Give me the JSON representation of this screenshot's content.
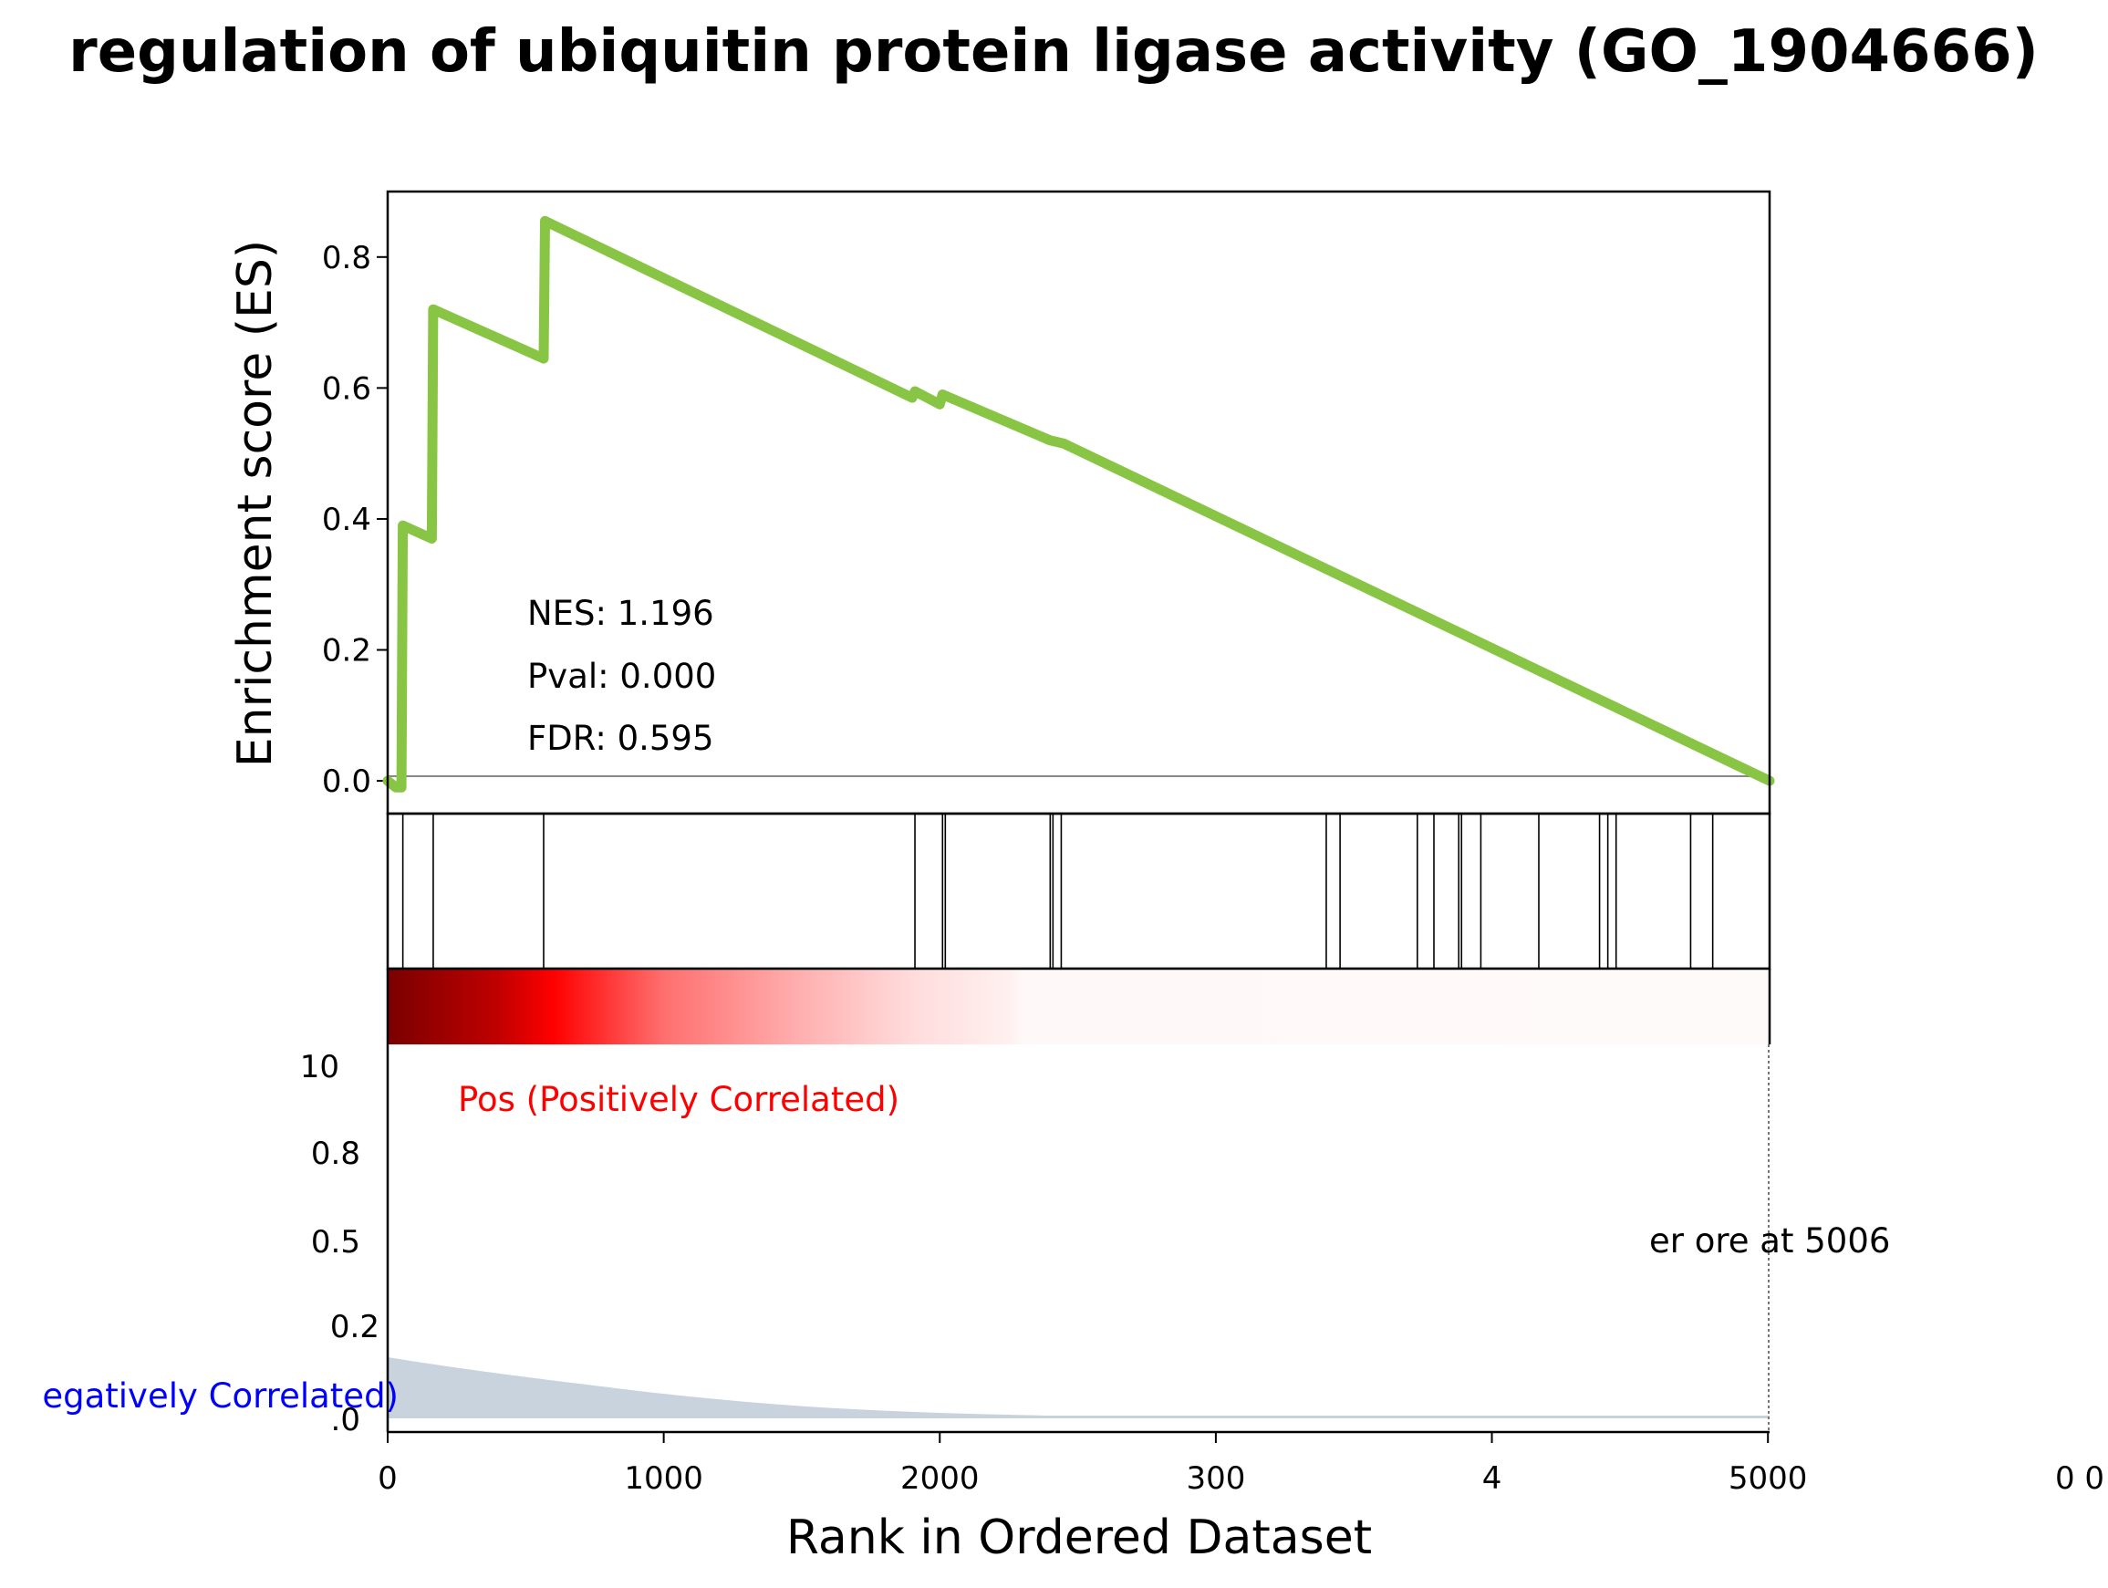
{
  "chart_data": {
    "type": "line",
    "title": "regulation of ubiquitin protein ligase activity (GO_1904666)",
    "xlabel": "Rank in Ordered Dataset",
    "ylabel": "Enrichment score (ES)",
    "xlim": [
      0,
      5006
    ],
    "ylim": [
      -0.05,
      0.9
    ],
    "x_ticks": [
      "0",
      "1000",
      "2000",
      "300",
      "4",
      "5000"
    ],
    "x_tick_values": [
      0,
      1000,
      2000,
      3000,
      4000,
      5000
    ],
    "x_extra_tick": "0 0",
    "y_ticks": [
      "0.0",
      "0.2",
      "0.4",
      "0.6",
      "0.8"
    ],
    "y_tick_values": [
      0.0,
      0.2,
      0.4,
      0.6,
      0.8
    ],
    "series": [
      {
        "color": "#88c544",
        "x": [
          0,
          55,
          150,
          565,
          1900,
          2000,
          2400,
          2450,
          5006
        ],
        "y": [
          0.0,
          0.39,
          0.37,
          0.855,
          0.595,
          0.59,
          0.52,
          0.515,
          0.0
        ],
        "points": [
          [
            0,
            0.0
          ],
          [
            30,
            -0.01
          ],
          [
            50,
            -0.01
          ],
          [
            55,
            0.39
          ],
          [
            160,
            0.37
          ],
          [
            165,
            0.72
          ],
          [
            565,
            0.645
          ],
          [
            570,
            0.855
          ],
          [
            1900,
            0.585
          ],
          [
            1910,
            0.595
          ],
          [
            2000,
            0.575
          ],
          [
            2010,
            0.59
          ],
          [
            2400,
            0.52
          ],
          [
            2450,
            0.515
          ],
          [
            5006,
            0.0
          ]
        ]
      }
    ],
    "hit_ranks": [
      55,
      165,
      565,
      1910,
      2010,
      2020,
      2400,
      2410,
      2440,
      3400,
      3450,
      3730,
      3790,
      3880,
      3890,
      3960,
      4170,
      4390,
      4420,
      4450,
      4720,
      4800
    ],
    "stats": {
      "nes": "NES: 1.196",
      "pval": "Pval: 0.000",
      "fdr": "FDR: 0.595"
    },
    "ranked_metric": {
      "y_ticks": [
        "10",
        "0.8",
        "0.5",
        "0.2",
        ".0"
      ],
      "pos_label": "Pos (Positively Correlated)",
      "neg_label": "egatively Correlated)",
      "zero_cross_label": "er ore at 5006",
      "fill_color": "#c9d3dd",
      "pos_color": "#ff0000",
      "neg_color": "#0000ff"
    }
  }
}
